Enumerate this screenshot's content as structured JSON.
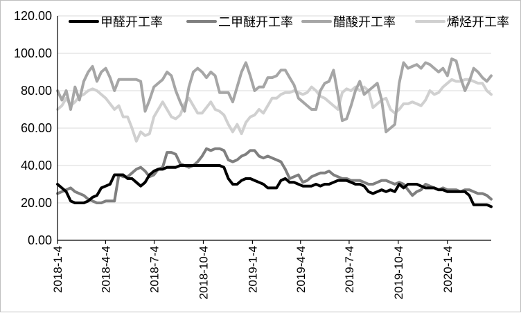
{
  "chart_data": {
    "type": "line",
    "title": "",
    "xlabel": "",
    "ylabel": "",
    "ylim": [
      0,
      120
    ],
    "y_ticks": [
      "0.00",
      "20.00",
      "40.00",
      "60.00",
      "80.00",
      "100.00",
      "120.00"
    ],
    "x_range": [
      "2018-01-04",
      "2020-03-26"
    ],
    "x_ticks": [
      {
        "label": "2018-1-4",
        "date": "2018-01-04"
      },
      {
        "label": "2018-4-4",
        "date": "2018-04-04"
      },
      {
        "label": "2018-7-4",
        "date": "2018-07-04"
      },
      {
        "label": "2018-10-4",
        "date": "2018-10-04"
      },
      {
        "label": "2019-1-4",
        "date": "2019-01-04"
      },
      {
        "label": "2019-4-4",
        "date": "2019-04-04"
      },
      {
        "label": "2019-7-4",
        "date": "2019-07-04"
      },
      {
        "label": "2019-10-4",
        "date": "2019-10-04"
      },
      {
        "label": "2020-1-4",
        "date": "2020-01-04"
      }
    ],
    "grid": "horizontal",
    "legend_position": "top",
    "series": [
      {
        "name": "甲醛开工率",
        "color": "#000000",
        "stroke": 4,
        "values": [
          30,
          28,
          26,
          21,
          20,
          20,
          20,
          21,
          23,
          24,
          28,
          29,
          30,
          35,
          35,
          35,
          33,
          33,
          31,
          29,
          31,
          35,
          37,
          38,
          38,
          39,
          39,
          39,
          40,
          40,
          40,
          40,
          40,
          40,
          40,
          40,
          40,
          40,
          39,
          33,
          30,
          30,
          32,
          33,
          33,
          32,
          31,
          30,
          28,
          28,
          28,
          32,
          33,
          31,
          31,
          30,
          29,
          29,
          29,
          30,
          29,
          30,
          30,
          31,
          32,
          32,
          32,
          31,
          30,
          30,
          29,
          26,
          25,
          26,
          27,
          26,
          27,
          26,
          30,
          28,
          30,
          30,
          30,
          29,
          28,
          28,
          28,
          27,
          27,
          26,
          26,
          26,
          26,
          26,
          24,
          19,
          19,
          19,
          19,
          18
        ]
      },
      {
        "name": "二甲醚开工率",
        "color": "#7f7f7f",
        "stroke": 4,
        "values": [
          25,
          26,
          27,
          28,
          26,
          25,
          24,
          22,
          21,
          20,
          20,
          21,
          21,
          21,
          35,
          34,
          34,
          36,
          38,
          39,
          37,
          34,
          35,
          38,
          39,
          47,
          47,
          46,
          41,
          40,
          39,
          40,
          42,
          45,
          49,
          48,
          49,
          49,
          48,
          43,
          42,
          43,
          45,
          46,
          48,
          48,
          45,
          44,
          45,
          44,
          43,
          42,
          38,
          33,
          34,
          35,
          31,
          32,
          34,
          35,
          36,
          36,
          37,
          35,
          34,
          33,
          33,
          32,
          32,
          32,
          31,
          30,
          30,
          31,
          32,
          32,
          31,
          30,
          31,
          30,
          27,
          24,
          26,
          27,
          30,
          29,
          28,
          27,
          28,
          27,
          27,
          27,
          26,
          27,
          27,
          26,
          25,
          25,
          24,
          22
        ]
      },
      {
        "name": "醋酸开工率",
        "color": "#a6a6a6",
        "stroke": 4,
        "values": [
          80,
          75,
          80,
          70,
          82,
          75,
          85,
          90,
          93,
          85,
          90,
          92,
          87,
          80,
          86,
          86,
          86,
          86,
          86,
          85,
          69,
          75,
          82,
          84,
          86,
          90,
          88,
          80,
          74,
          69,
          82,
          90,
          92,
          90,
          87,
          90,
          88,
          79,
          79,
          79,
          74,
          82,
          90,
          95,
          88,
          80,
          82,
          82,
          87,
          87,
          88,
          91,
          91,
          87,
          83,
          76,
          74,
          72,
          70,
          70,
          80,
          84,
          85,
          91,
          78,
          64,
          65,
          72,
          80,
          85,
          78,
          80,
          82,
          84,
          75,
          58,
          60,
          62,
          84,
          95,
          92,
          93,
          94,
          92,
          95,
          94,
          92,
          90,
          92,
          88,
          97,
          96,
          87,
          80,
          85,
          92,
          90,
          87,
          85,
          88
        ]
      },
      {
        "name": "烯烃开工率",
        "color": "#d0d0d0",
        "stroke": 4,
        "values": [
          70,
          72,
          76,
          72,
          74,
          77,
          78,
          80,
          81,
          80,
          78,
          76,
          73,
          70,
          72,
          66,
          66,
          60,
          53,
          58,
          56,
          57,
          66,
          70,
          74,
          70,
          66,
          65,
          67,
          73,
          76,
          72,
          68,
          68,
          71,
          74,
          70,
          69,
          67,
          62,
          58,
          62,
          57,
          63,
          66,
          67,
          70,
          68,
          72,
          76,
          76,
          78,
          79,
          79,
          80,
          79,
          78,
          79,
          82,
          80,
          77,
          76,
          74,
          72,
          70,
          79,
          81,
          80,
          82,
          80,
          82,
          80,
          71,
          73,
          75,
          76,
          70,
          68,
          70,
          73,
          73,
          74,
          73,
          72,
          75,
          80,
          78,
          79,
          82,
          84,
          86,
          85,
          85,
          86,
          86,
          85,
          84,
          84,
          80,
          78
        ]
      }
    ]
  }
}
